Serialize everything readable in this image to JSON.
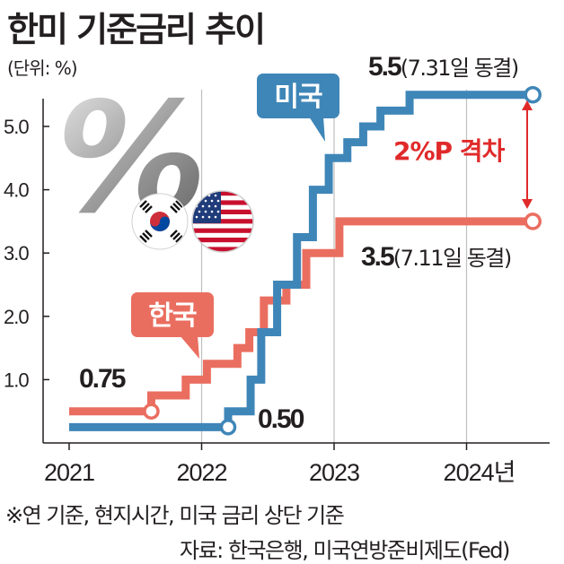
{
  "title": "한미 기준금리 추이",
  "unit_label": "(단위: %)",
  "footnote": "※연 기준, 현지시간, 미국 금리 상단 기준",
  "source": "자료: 한국은행, 미국연방준비제도(Fed)",
  "colors": {
    "us": "#3f86b8",
    "korea": "#ea6e60",
    "gap": "#e02a2a",
    "grid": "#bfbfbf"
  },
  "icons": [
    "percent-symbol-icon",
    "korea-flag-icon",
    "us-flag-icon"
  ],
  "annotations": {
    "us_end_value": "5.5",
    "us_end_note": "(7.31일 동결)",
    "korea_end_value": "3.5",
    "korea_end_note": "(7.11일 동결)",
    "korea_start_value": "0.75",
    "us_start_value": "0.50",
    "gap_label": "2%P 격차",
    "us_badge": "미국",
    "korea_badge": "한국"
  },
  "chart_data": {
    "type": "line",
    "step": true,
    "x_ticks": [
      "2021",
      "2022",
      "2023",
      "2024년"
    ],
    "x_tick_values": [
      2021,
      2022,
      2023,
      2024
    ],
    "y_ticks": [
      "1.0",
      "2.0",
      "3.0",
      "4.0",
      "5.0"
    ],
    "y_tick_values": [
      1,
      2,
      3,
      4,
      5
    ],
    "xlim": [
      2020.9,
      2024.65
    ],
    "ylim": [
      0,
      5.75
    ],
    "grid": "vertical",
    "series": [
      {
        "name": "한국",
        "key": "korea",
        "points": [
          [
            2021.0,
            0.5
          ],
          [
            2021.62,
            0.75
          ],
          [
            2021.88,
            1.0
          ],
          [
            2022.04,
            1.25
          ],
          [
            2022.27,
            1.5
          ],
          [
            2022.36,
            1.75
          ],
          [
            2022.47,
            2.25
          ],
          [
            2022.64,
            2.5
          ],
          [
            2022.79,
            3.0
          ],
          [
            2023.04,
            3.5
          ],
          [
            2024.5,
            3.5
          ]
        ]
      },
      {
        "name": "미국",
        "key": "us",
        "points": [
          [
            2021.0,
            0.25
          ],
          [
            2022.2,
            0.5
          ],
          [
            2022.37,
            1.0
          ],
          [
            2022.45,
            1.75
          ],
          [
            2022.57,
            2.5
          ],
          [
            2022.72,
            3.25
          ],
          [
            2022.84,
            4.0
          ],
          [
            2022.96,
            4.5
          ],
          [
            2023.1,
            4.75
          ],
          [
            2023.22,
            5.0
          ],
          [
            2023.35,
            5.25
          ],
          [
            2023.57,
            5.5
          ],
          [
            2024.5,
            5.5
          ]
        ]
      }
    ]
  }
}
